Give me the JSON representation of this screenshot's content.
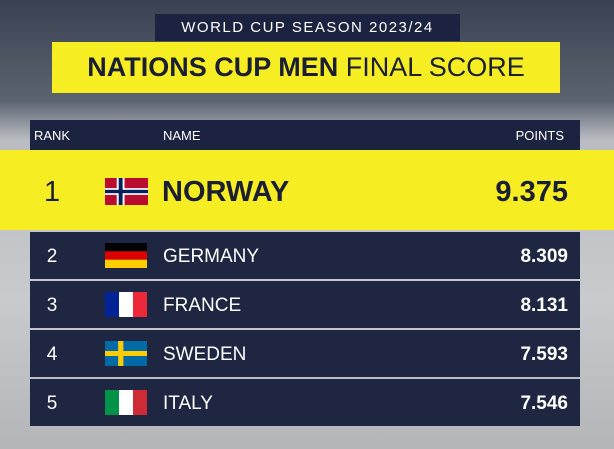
{
  "header": {
    "subtitle": "WORLD CUP SEASON 2023/24",
    "title_bold": "NATIONS CUP MEN",
    "title_rest": "FINAL SCORE"
  },
  "table": {
    "columns": [
      "RANK",
      "NAME",
      "POINTS"
    ],
    "rows": [
      [
        1,
        "NORWAY",
        9.375
      ],
      [
        2,
        "GERMANY",
        8.309
      ],
      [
        3,
        "FRANCE",
        8.131
      ],
      [
        4,
        "SWEDEN",
        7.593
      ],
      [
        5,
        "ITALY",
        7.546
      ]
    ]
  }
}
